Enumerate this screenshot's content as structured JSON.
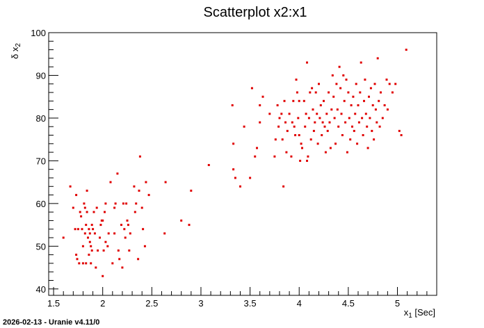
{
  "chart_data": {
    "type": "scatter",
    "title": "Scatterplot x2:x1",
    "xlabel": {
      "main": "x",
      "sub": "1",
      "unit": " [Sec]"
    },
    "ylabel": {
      "main": "δ x",
      "sub": "2"
    },
    "xlim": [
      1.45,
      5.4
    ],
    "ylim": [
      38.5,
      100
    ],
    "xticks": [
      1.5,
      2,
      2.5,
      3,
      3.5,
      4,
      4.5,
      5
    ],
    "xtick_labels": [
      "1.5",
      "2",
      "2.5",
      "3",
      "3.5",
      "4",
      "4.5",
      "5"
    ],
    "yticks": [
      40,
      50,
      60,
      70,
      80,
      90,
      100
    ],
    "ytick_labels": [
      "40",
      "50",
      "60",
      "70",
      "80",
      "90",
      "100"
    ],
    "grid": false,
    "marker_color": "#e00000",
    "points": [
      [
        1.6,
        52
      ],
      [
        1.67,
        64
      ],
      [
        1.7,
        59
      ],
      [
        1.72,
        54
      ],
      [
        1.73,
        62
      ],
      [
        1.73,
        48
      ],
      [
        1.74,
        47
      ],
      [
        1.75,
        54
      ],
      [
        1.76,
        46
      ],
      [
        1.77,
        58
      ],
      [
        1.78,
        57
      ],
      [
        1.79,
        54
      ],
      [
        1.8,
        50
      ],
      [
        1.8,
        46
      ],
      [
        1.81,
        60
      ],
      [
        1.82,
        59
      ],
      [
        1.82,
        53
      ],
      [
        1.83,
        55
      ],
      [
        1.83,
        46
      ],
      [
        1.84,
        63
      ],
      [
        1.84,
        58
      ],
      [
        1.85,
        52
      ],
      [
        1.86,
        54
      ],
      [
        1.86,
        48
      ],
      [
        1.87,
        53
      ],
      [
        1.87,
        51
      ],
      [
        1.88,
        50
      ],
      [
        1.88,
        46
      ],
      [
        1.89,
        49
      ],
      [
        1.89,
        55
      ],
      [
        1.9,
        54
      ],
      [
        1.91,
        58
      ],
      [
        1.92,
        53
      ],
      [
        1.93,
        45
      ],
      [
        1.94,
        59
      ],
      [
        1.95,
        49
      ],
      [
        1.97,
        52
      ],
      [
        1.98,
        55
      ],
      [
        1.99,
        56
      ],
      [
        2.0,
        56
      ],
      [
        2.0,
        43
      ],
      [
        2.01,
        49
      ],
      [
        2.02,
        58
      ],
      [
        2.03,
        60
      ],
      [
        2.03,
        51
      ],
      [
        2.05,
        50
      ],
      [
        2.06,
        53
      ],
      [
        2.08,
        65
      ],
      [
        2.1,
        46
      ],
      [
        2.12,
        59
      ],
      [
        2.12,
        53
      ],
      [
        2.13,
        60
      ],
      [
        2.15,
        67
      ],
      [
        2.16,
        49
      ],
      [
        2.17,
        47
      ],
      [
        2.19,
        55
      ],
      [
        2.2,
        45
      ],
      [
        2.21,
        60
      ],
      [
        2.22,
        54
      ],
      [
        2.23,
        52
      ],
      [
        2.24,
        60
      ],
      [
        2.25,
        56
      ],
      [
        2.26,
        55
      ],
      [
        2.27,
        49
      ],
      [
        2.28,
        53
      ],
      [
        2.32,
        64
      ],
      [
        2.33,
        58
      ],
      [
        2.34,
        60
      ],
      [
        2.36,
        47
      ],
      [
        2.37,
        63
      ],
      [
        2.38,
        71
      ],
      [
        2.4,
        59
      ],
      [
        2.41,
        54
      ],
      [
        2.43,
        50
      ],
      [
        2.44,
        65
      ],
      [
        2.47,
        62
      ],
      [
        2.63,
        53
      ],
      [
        2.64,
        65
      ],
      [
        2.8,
        56
      ],
      [
        2.88,
        55
      ],
      [
        2.9,
        63
      ],
      [
        3.08,
        69
      ],
      [
        3.32,
        83
      ],
      [
        3.33,
        74
      ],
      [
        3.33,
        68
      ],
      [
        3.35,
        66
      ],
      [
        3.4,
        64
      ],
      [
        3.44,
        78
      ],
      [
        3.5,
        66
      ],
      [
        3.52,
        87
      ],
      [
        3.55,
        71
      ],
      [
        3.57,
        73
      ],
      [
        3.6,
        83
      ],
      [
        3.6,
        79
      ],
      [
        3.63,
        85
      ],
      [
        3.7,
        81
      ],
      [
        3.75,
        71
      ],
      [
        3.76,
        75
      ],
      [
        3.78,
        83
      ],
      [
        3.79,
        78
      ],
      [
        3.8,
        80
      ],
      [
        3.82,
        81
      ],
      [
        3.83,
        75
      ],
      [
        3.84,
        64
      ],
      [
        3.85,
        84
      ],
      [
        3.86,
        79
      ],
      [
        3.87,
        72
      ],
      [
        3.88,
        77
      ],
      [
        3.9,
        81
      ],
      [
        3.92,
        71
      ],
      [
        3.93,
        79
      ],
      [
        3.94,
        84
      ],
      [
        3.95,
        78
      ],
      [
        3.96,
        76
      ],
      [
        3.97,
        89
      ],
      [
        3.98,
        86
      ],
      [
        3.99,
        80
      ],
      [
        4.0,
        84
      ],
      [
        4.0,
        76
      ],
      [
        4.01,
        70
      ],
      [
        4.02,
        74
      ],
      [
        4.03,
        73
      ],
      [
        4.05,
        84
      ],
      [
        4.06,
        78
      ],
      [
        4.07,
        81
      ],
      [
        4.08,
        93
      ],
      [
        4.08,
        70
      ],
      [
        4.09,
        71
      ],
      [
        4.1,
        80
      ],
      [
        4.11,
        86
      ],
      [
        4.12,
        75
      ],
      [
        4.13,
        87
      ],
      [
        4.14,
        82
      ],
      [
        4.15,
        77
      ],
      [
        4.16,
        79
      ],
      [
        4.17,
        86
      ],
      [
        4.18,
        81
      ],
      [
        4.19,
        74
      ],
      [
        4.2,
        88
      ],
      [
        4.21,
        80
      ],
      [
        4.22,
        83
      ],
      [
        4.23,
        76
      ],
      [
        4.24,
        79
      ],
      [
        4.25,
        84
      ],
      [
        4.26,
        78
      ],
      [
        4.27,
        72
      ],
      [
        4.28,
        81
      ],
      [
        4.29,
        77
      ],
      [
        4.3,
        86
      ],
      [
        4.31,
        79
      ],
      [
        4.32,
        73
      ],
      [
        4.33,
        82
      ],
      [
        4.34,
        90
      ],
      [
        4.35,
        85
      ],
      [
        4.36,
        80
      ],
      [
        4.37,
        74
      ],
      [
        4.38,
        88
      ],
      [
        4.39,
        82
      ],
      [
        4.4,
        78
      ],
      [
        4.41,
        92
      ],
      [
        4.42,
        87
      ],
      [
        4.43,
        81
      ],
      [
        4.44,
        76
      ],
      [
        4.45,
        90
      ],
      [
        4.46,
        84
      ],
      [
        4.47,
        79
      ],
      [
        4.48,
        89
      ],
      [
        4.49,
        72
      ],
      [
        4.5,
        86
      ],
      [
        4.51,
        80
      ],
      [
        4.52,
        75
      ],
      [
        4.53,
        83
      ],
      [
        4.54,
        78
      ],
      [
        4.55,
        85
      ],
      [
        4.56,
        77
      ],
      [
        4.57,
        81
      ],
      [
        4.58,
        88
      ],
      [
        4.59,
        74
      ],
      [
        4.6,
        83
      ],
      [
        4.61,
        79
      ],
      [
        4.62,
        86
      ],
      [
        4.63,
        93
      ],
      [
        4.64,
        80
      ],
      [
        4.65,
        76
      ],
      [
        4.66,
        84
      ],
      [
        4.67,
        89
      ],
      [
        4.68,
        81
      ],
      [
        4.69,
        78
      ],
      [
        4.7,
        73
      ],
      [
        4.71,
        85
      ],
      [
        4.72,
        80
      ],
      [
        4.73,
        87
      ],
      [
        4.74,
        77
      ],
      [
        4.75,
        83
      ],
      [
        4.76,
        75
      ],
      [
        4.77,
        88
      ],
      [
        4.78,
        82
      ],
      [
        4.79,
        79
      ],
      [
        4.8,
        94
      ],
      [
        4.81,
        84
      ],
      [
        4.82,
        78
      ],
      [
        4.83,
        86
      ],
      [
        4.85,
        80
      ],
      [
        4.87,
        83
      ],
      [
        4.89,
        89
      ],
      [
        4.9,
        82
      ],
      [
        4.92,
        88
      ],
      [
        4.95,
        86
      ],
      [
        4.98,
        88
      ],
      [
        5.02,
        77
      ],
      [
        5.04,
        76
      ],
      [
        5.09,
        96
      ]
    ],
    "footer": "2026-02-13 - Uranie v4.11/0"
  }
}
